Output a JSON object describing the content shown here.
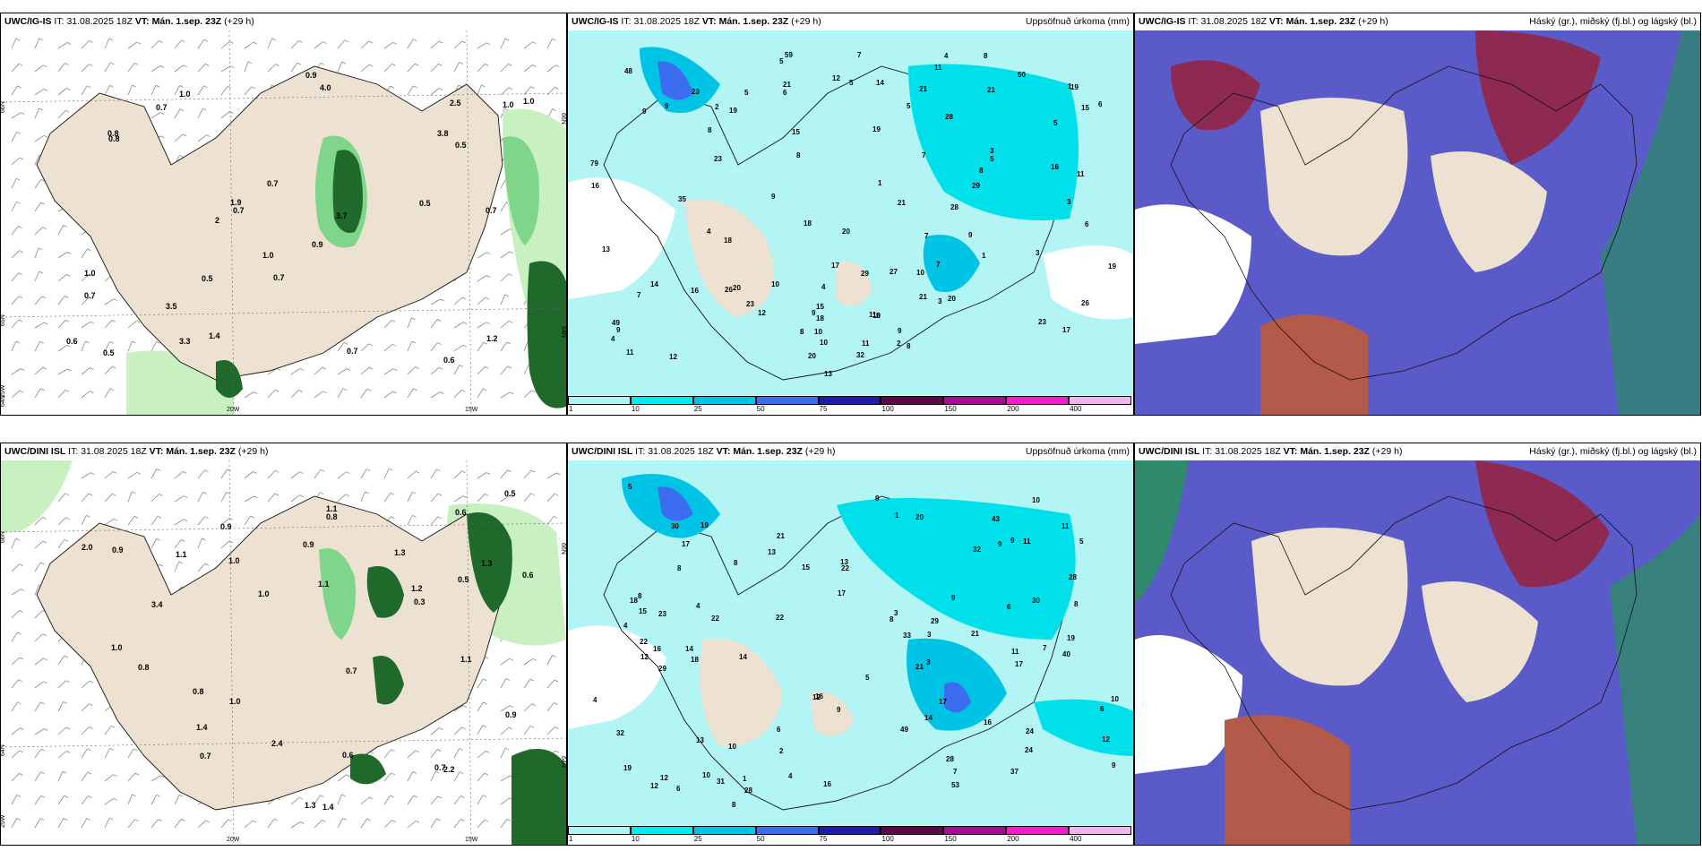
{
  "panels": [
    {
      "model": "UWC/IG-IS",
      "it_label": "IT:",
      "it_value": "31.08.2025 18Z",
      "vt_label": "VT:",
      "vt_value": "Mán. 1.sep. 23Z",
      "lead": "(+29 h)",
      "right_title": "",
      "grid_labels": [
        "66N",
        "65N",
        "64N",
        "20W",
        "15W",
        "66N",
        "64N",
        "25W"
      ],
      "values": [
        "0.7",
        "0.7",
        "0.7",
        "0.6",
        "0.7",
        "0.8",
        "3.7",
        "3.3",
        "0.5",
        "1.0",
        "3.8",
        "1.0",
        "0.8",
        "1.0",
        "1.4",
        "4.0",
        "0.5",
        "0.5",
        "0.9",
        "0.7",
        "1.0",
        "1.9",
        "0.5",
        "0.7",
        "1.0",
        "1.2",
        "3.5",
        "0.6",
        "2",
        "2.5",
        "0.9",
        "0.7"
      ]
    },
    {
      "model": "UWC/IG-IS",
      "it_label": "IT:",
      "it_value": "31.08.2025 18Z",
      "vt_label": "VT:",
      "vt_value": "Mán. 1.sep. 23Z",
      "lead": "(+29 h)",
      "right_title": "Uppsöfnuð úrkoma (mm)",
      "values": [
        "9",
        "9",
        "10",
        "3",
        "3",
        "48",
        "79",
        "59",
        "50",
        "12",
        "11",
        "9",
        "21",
        "15",
        "20",
        "21",
        "13",
        "11",
        "16",
        "17",
        "21",
        "12",
        "14",
        "8",
        "9",
        "10",
        "20",
        "29",
        "16",
        "19",
        "26",
        "9",
        "18",
        "16",
        "10",
        "7",
        "11",
        "18",
        "23",
        "17",
        "23",
        "15",
        "32",
        "35",
        "28",
        "14",
        "19",
        "11",
        "3",
        "4",
        "18",
        "11",
        "19",
        "23",
        "15",
        "9",
        "20",
        "19",
        "13",
        "49",
        "26",
        "27",
        "10",
        "2",
        "1",
        "1",
        "5",
        "5",
        "8",
        "7",
        "9",
        "6",
        "12",
        "10",
        "29",
        "8",
        "20",
        "21",
        "28",
        "7",
        "4",
        "8",
        "8",
        "21",
        "23",
        "2",
        "1",
        "3",
        "4",
        "8",
        "7",
        "6",
        "4",
        "5",
        "5",
        "5",
        "5",
        "6",
        "5",
        "7"
      ],
      "colorbar": {
        "labels": [
          "1",
          "10",
          "25",
          "50",
          "75",
          "100",
          "150",
          "200",
          "400"
        ],
        "colors": [
          "#aff5f5",
          "#00ecec",
          "#00c4e6",
          "#3c6df0",
          "#1e1ea8",
          "#5a0a46",
          "#a0108c",
          "#f01ec8",
          "#f0b4f0"
        ]
      }
    },
    {
      "model": "UWC/IG-IS",
      "it_label": "IT:",
      "it_value": "31.08.2025 18Z",
      "vt_label": "VT:",
      "vt_value": "Mán. 1.sep. 23Z",
      "lead": "(+29 h)",
      "right_title": "Háský (gr.), miðský (fj.bl.) og lágský (bl.)"
    },
    {
      "model": "UWC/DINI ISL",
      "it_label": "IT:",
      "it_value": "31.08.2025 18Z",
      "vt_label": "VT:",
      "vt_value": "Mán. 1.sep. 23Z",
      "lead": "(+29 h)",
      "right_title": "",
      "grid_labels": [
        "66N",
        "64N",
        "20W",
        "15W",
        "66N",
        "64N",
        "25W"
      ],
      "values": [
        "1.1",
        "1.0",
        "1.1",
        "0.5",
        "2.2",
        "0.9",
        "0.6",
        "1.1",
        "0.7",
        "0.7",
        "0.6",
        "0.3",
        "0.6",
        "0.9",
        "1.0",
        "0.9",
        "2.0",
        "0.8",
        "1.4",
        "2.4",
        "0.8",
        "0.8",
        "0.5",
        "1.1",
        "1.0",
        "1.3",
        "1.2",
        "1.0",
        "1.3",
        "1.4",
        "1.3",
        "3.4",
        "0.7",
        "0.9"
      ]
    },
    {
      "model": "UWC/DINI ISL",
      "it_label": "IT:",
      "it_value": "31.08.2025 18Z",
      "vt_label": "VT:",
      "vt_value": "Mán. 1.sep. 23Z",
      "lead": "(+29 h)",
      "right_title": "Uppsöfnuð úrkoma (mm)",
      "values": [
        "9",
        "9",
        "9",
        "6",
        "4",
        "7",
        "31",
        "29",
        "8",
        "30",
        "53",
        "8",
        "8",
        "24",
        "18",
        "13",
        "15",
        "23",
        "28",
        "16",
        "19",
        "12",
        "18",
        "19",
        "22",
        "5",
        "19",
        "11",
        "21",
        "22",
        "15",
        "13",
        "10",
        "14",
        "17",
        "33",
        "37",
        "20",
        "17",
        "12",
        "28",
        "22",
        "29",
        "8",
        "4",
        "21",
        "16",
        "32",
        "43",
        "6",
        "12",
        "40",
        "49",
        "32",
        "21",
        "30",
        "10",
        "17",
        "24",
        "8",
        "3",
        "5",
        "6",
        "4",
        "11",
        "28",
        "22",
        "9",
        "14",
        "17",
        "14",
        "5",
        "1",
        "2",
        "1",
        "3",
        "3",
        "8",
        "7",
        "6",
        "9",
        "4",
        "10",
        "13",
        "12",
        "12",
        "11",
        "16",
        "16",
        "10",
        "9"
      ],
      "colorbar": {
        "labels": [
          "1",
          "10",
          "25",
          "50",
          "75",
          "100",
          "150",
          "200",
          "400"
        ],
        "colors": [
          "#aff5f5",
          "#00ecec",
          "#00c4e6",
          "#3c6df0",
          "#1e1ea8",
          "#5a0a46",
          "#a0108c",
          "#f01ec8",
          "#f0b4f0"
        ]
      }
    },
    {
      "model": "UWC/DINI ISL",
      "it_label": "IT:",
      "it_value": "31.08.2025 18Z",
      "vt_label": "VT:",
      "vt_value": "Mán. 1.sep. 23Z",
      "lead": "(+29 h)",
      "right_title": "Háský (gr.), miðský (fj.bl.) og lágský (bl.)"
    }
  ],
  "colors": {
    "land": "#ede2d2",
    "sea_cloud_cyan": "#b3f4f4",
    "green_light": "#c8f0c0",
    "green_mid": "#7fd68a",
    "green_dark": "#1f6a2a",
    "cloud_blue": "#5a5ac8",
    "cloud_maroon": "#8e2a52",
    "cloud_brown": "#b45a4a",
    "cloud_green": "#2e8a6a"
  }
}
